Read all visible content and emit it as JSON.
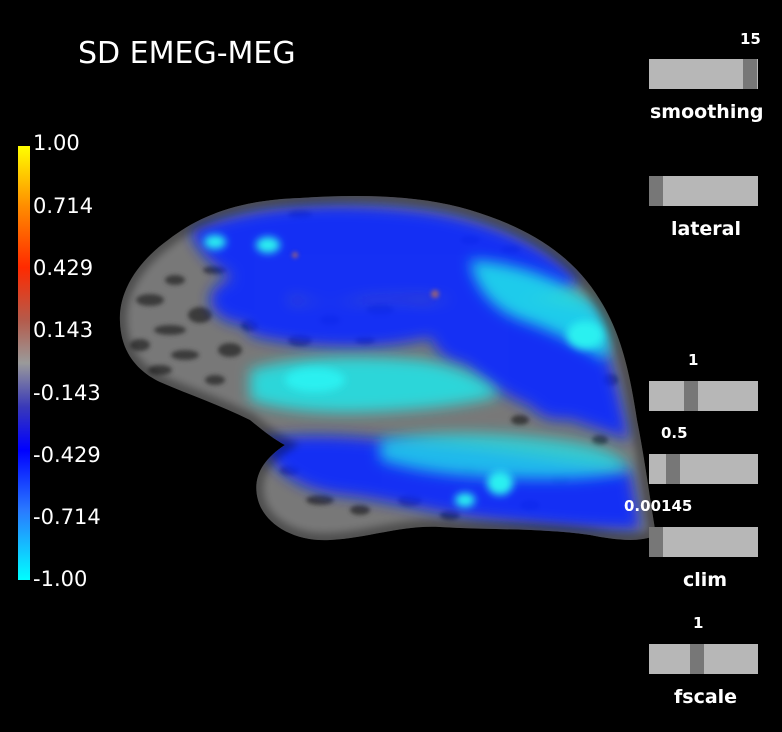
{
  "title": "SD EMEG-MEG",
  "colorbar": {
    "labels": [
      "1.00",
      "0.714",
      "0.429",
      "0.143",
      "-0.143",
      "-0.429",
      "-0.714",
      "-1.00"
    ]
  },
  "sliders": {
    "smoothing": {
      "label": "smoothing",
      "value": "15",
      "level": 0.9
    },
    "lateral": {
      "label": "lateral",
      "level": 0.05
    },
    "clim_high": {
      "value": "1",
      "level": 0.45
    },
    "clim_mid": {
      "value": "0.5",
      "level": 0.2
    },
    "clim_low": {
      "value": "0.00145",
      "level": 0.05
    },
    "clim_label": "clim",
    "fscale": {
      "label": "fscale",
      "value": "1",
      "level": 0.45
    }
  },
  "colors": {
    "background": "#000000",
    "slider_track": "#b7b7b7",
    "slider_handle": "#777777",
    "brain_gyri": "#7a7a7a",
    "brain_sulci": "#3a3a3a",
    "activation_blue": "#0a2bff",
    "activation_cyan": "#20e0e8"
  }
}
